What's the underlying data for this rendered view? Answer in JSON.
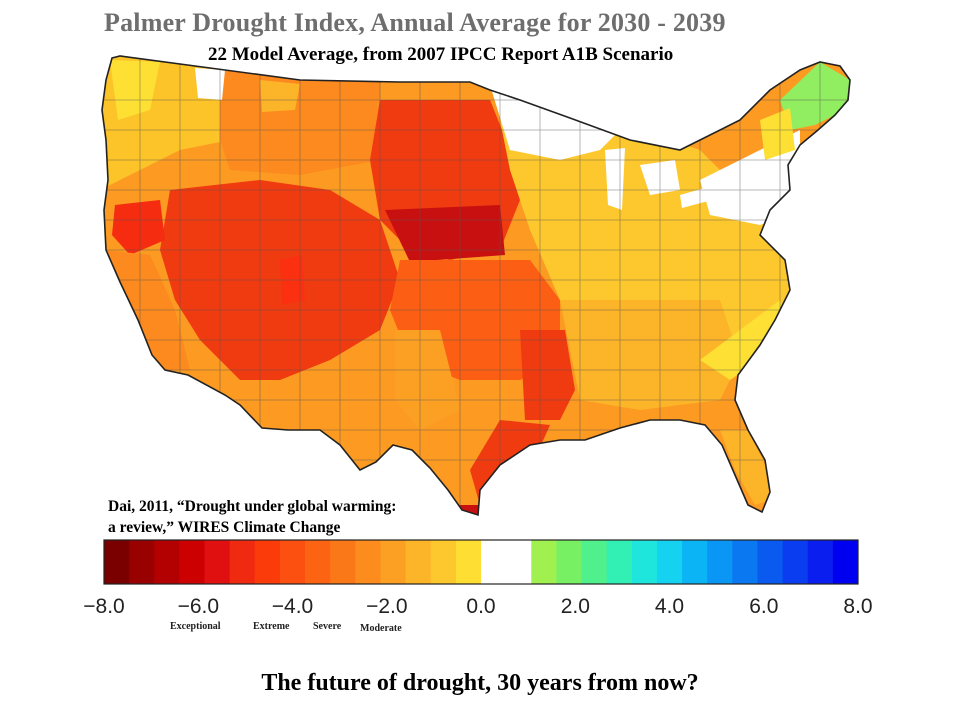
{
  "title": "Palmer Drought Index, Annual Average for 2030 - 2039",
  "subtitle": "22 Model Average, from 2007 IPCC Report A1B Scenario",
  "citation": {
    "line1": "Dai, 2011, “Drought under global warming:",
    "line2": "a review,” WIRES Climate Change"
  },
  "legend": {
    "colors": [
      "#7a0000",
      "#990000",
      "#b30000",
      "#cc0000",
      "#e01010",
      "#f02a10",
      "#fb3c0a",
      "#fc5010",
      "#fc6414",
      "#fb7819",
      "#fc8c1e",
      "#fca023",
      "#fcb428",
      "#fdc82d",
      "#fede32",
      "#ffffff",
      "#ffffff",
      "#a0f050",
      "#78f064",
      "#50f08c",
      "#32f0b4",
      "#1ee6dc",
      "#14d2f0",
      "#0ab4f5",
      "#0a96f5",
      "#0a78f0",
      "#0a5af0",
      "#0a3cf0",
      "#0a1ef0",
      "#0000f0"
    ],
    "ticks": [
      "−8.0",
      "−6.0",
      "−4.0",
      "−2.0",
      "0.0",
      "2.0",
      "4.0",
      "6.0",
      "8.0"
    ],
    "tick_values": [
      -8,
      -6,
      -4,
      -2,
      0,
      2,
      4,
      6,
      8
    ],
    "range": [
      -8,
      8
    ],
    "categories": [
      "Exceptional",
      "Extreme",
      "Severe",
      "Moderate"
    ]
  },
  "caption": "The future of drought, 30 years from now?"
}
